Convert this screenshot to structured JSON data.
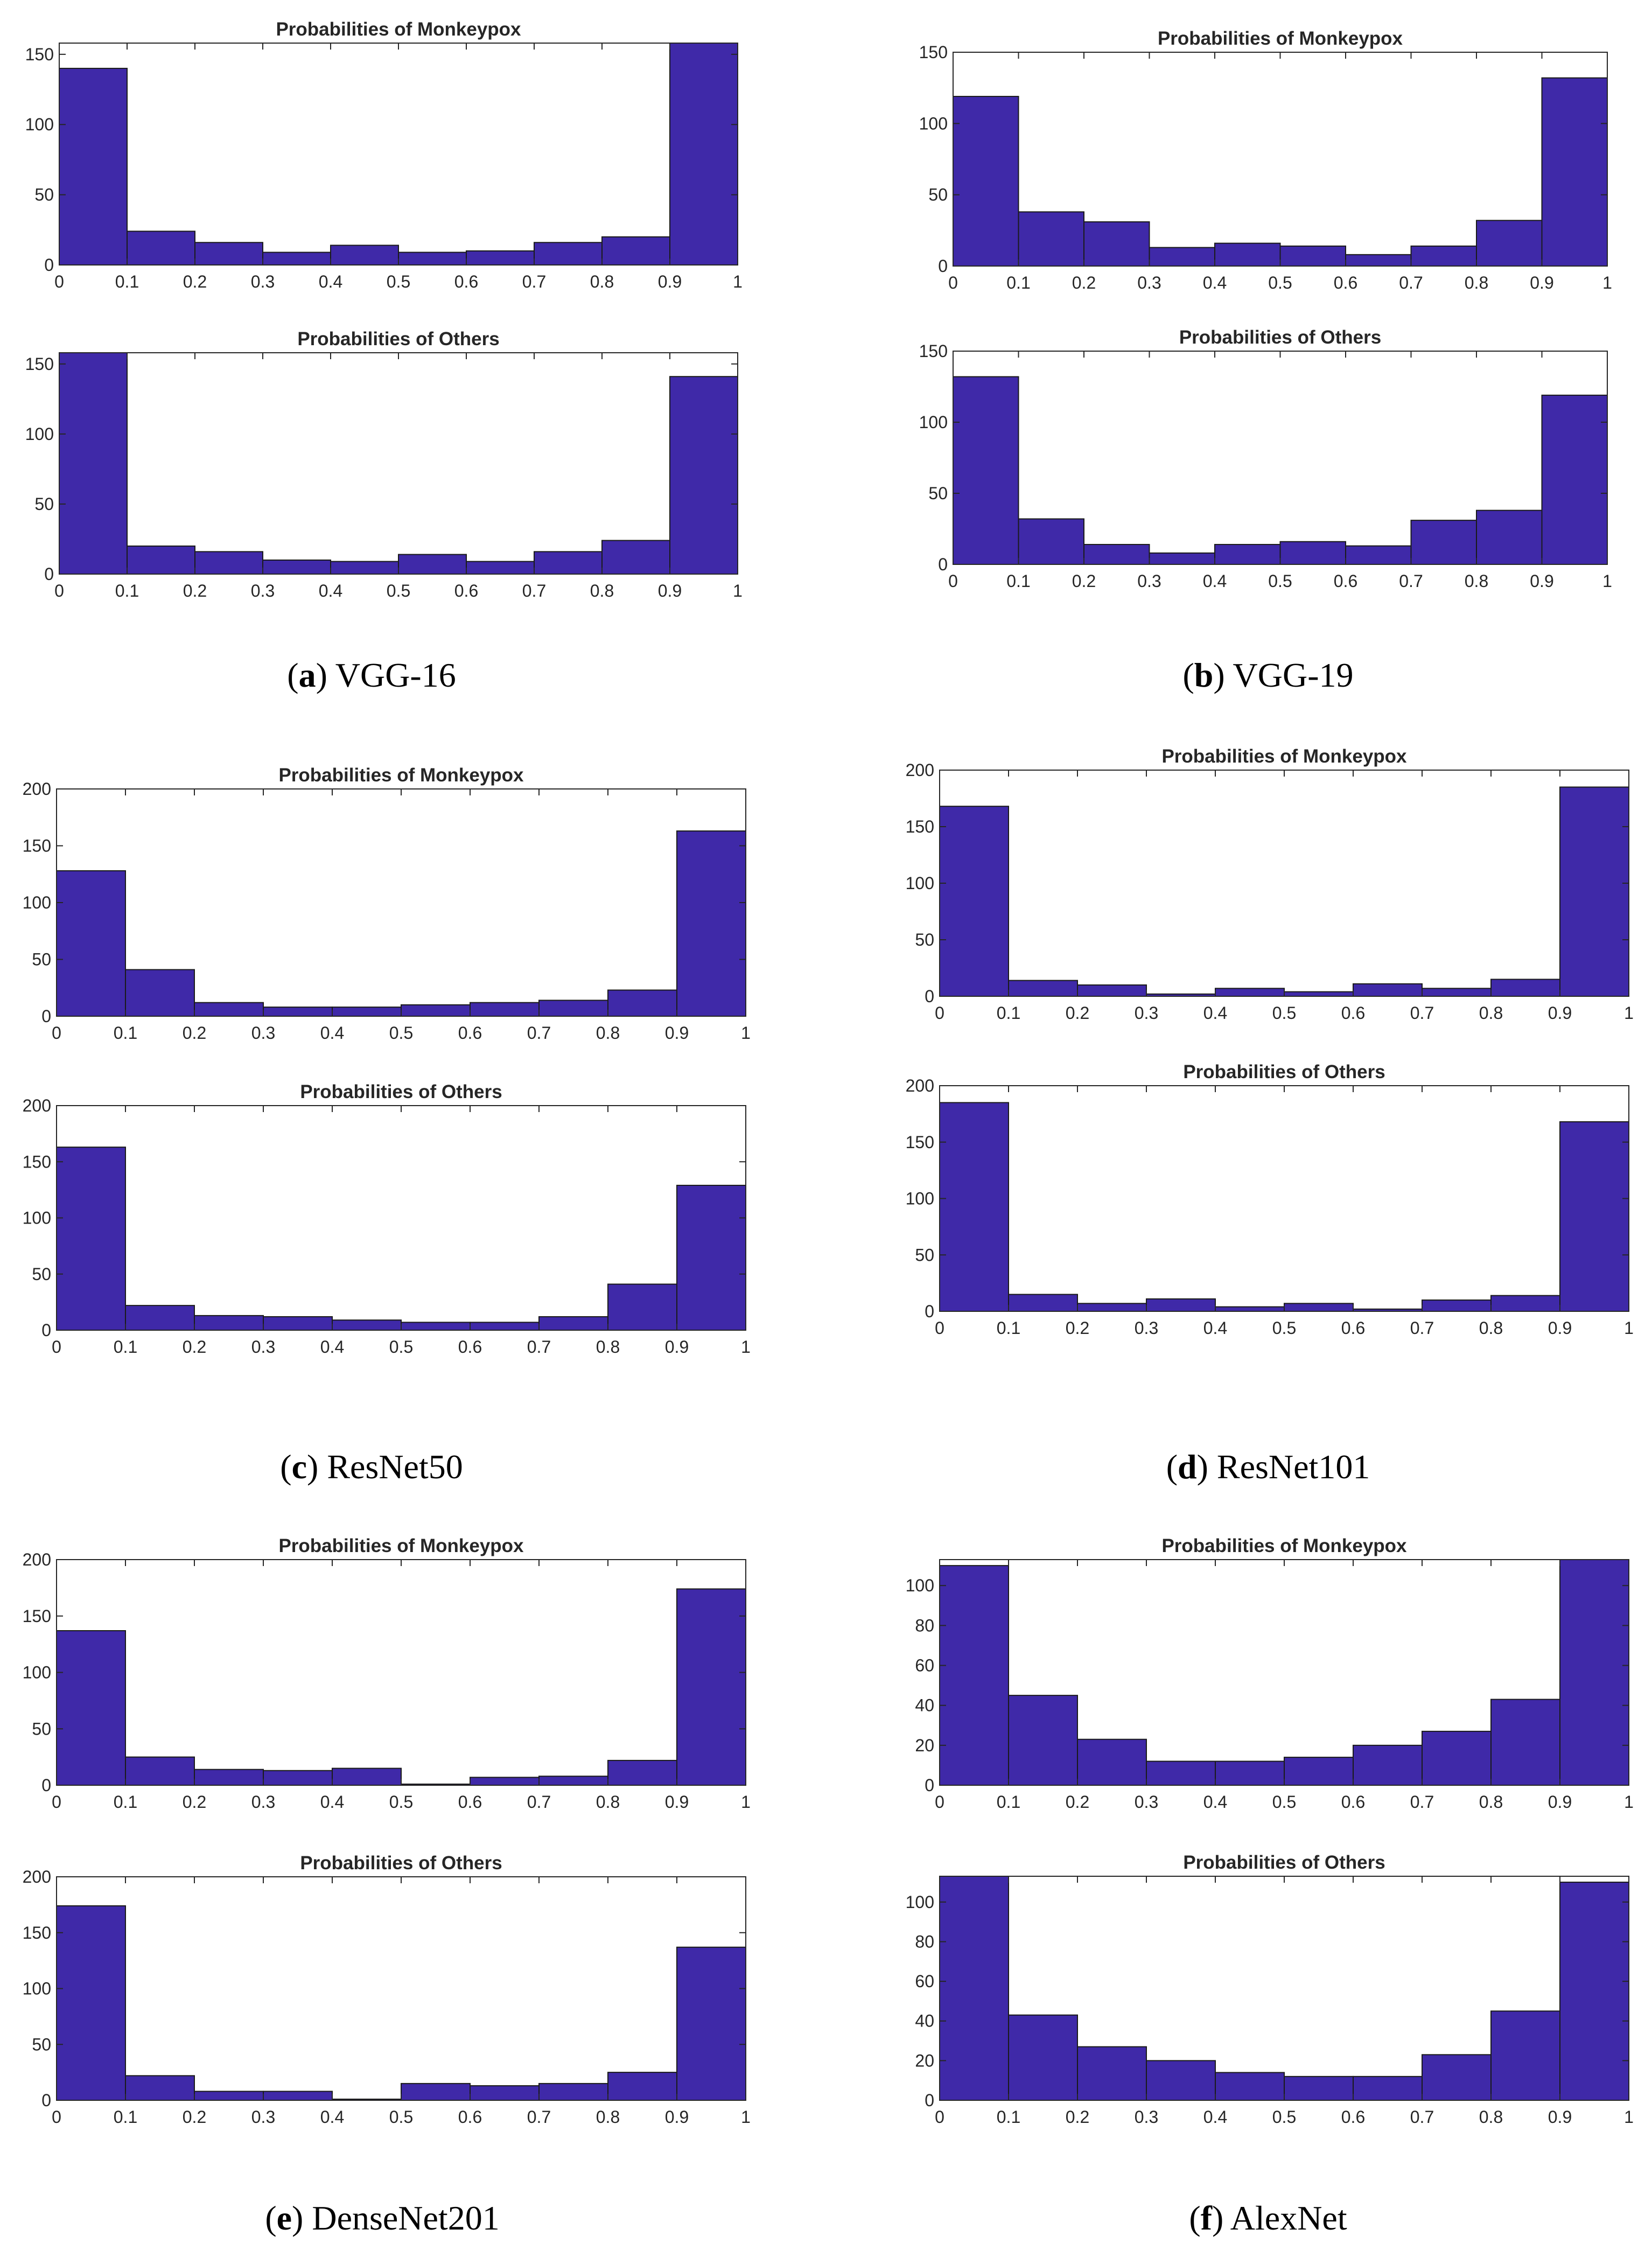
{
  "figure": {
    "captions": [
      {
        "letter": "a",
        "name": "VGG-16"
      },
      {
        "letter": "b",
        "name": "VGG-19"
      },
      {
        "letter": "c",
        "name": "ResNet50"
      },
      {
        "letter": "d",
        "name": "ResNet101"
      },
      {
        "letter": "e",
        "name": "DenseNet201"
      },
      {
        "letter": "f",
        "name": "AlexNet"
      }
    ]
  },
  "chart_data": [
    {
      "type": "bar",
      "panel": "a",
      "title": "Probabilities of Monkeypox",
      "bin_edges": [
        "0",
        "0.1",
        "0.2",
        "0.3",
        "0.4",
        "0.5",
        "0.6",
        "0.7",
        "0.8",
        "0.9",
        "1"
      ],
      "values": [
        140,
        24,
        16,
        9,
        14,
        9,
        10,
        16,
        20,
        158
      ],
      "ylim": [
        0,
        158
      ],
      "yticks": [
        0,
        50,
        100,
        150
      ]
    },
    {
      "type": "bar",
      "panel": "a",
      "title": "Probabilities of Others",
      "bin_edges": [
        "0",
        "0.1",
        "0.2",
        "0.3",
        "0.4",
        "0.5",
        "0.6",
        "0.7",
        "0.8",
        "0.9",
        "1"
      ],
      "values": [
        158,
        20,
        16,
        10,
        9,
        14,
        9,
        16,
        24,
        141
      ],
      "ylim": [
        0,
        158
      ],
      "yticks": [
        0,
        50,
        100,
        150
      ]
    },
    {
      "type": "bar",
      "panel": "b",
      "title": "Probabilities of Monkeypox",
      "bin_edges": [
        "0",
        "0.1",
        "0.2",
        "0.3",
        "0.4",
        "0.5",
        "0.6",
        "0.7",
        "0.8",
        "0.9",
        "1"
      ],
      "values": [
        119,
        38,
        31,
        13,
        16,
        14,
        8,
        14,
        32,
        132
      ],
      "ylim": [
        0,
        150
      ],
      "yticks": [
        0,
        50,
        100,
        150
      ]
    },
    {
      "type": "bar",
      "panel": "b",
      "title": "Probabilities of Others",
      "bin_edges": [
        "0",
        "0.1",
        "0.2",
        "0.3",
        "0.4",
        "0.5",
        "0.6",
        "0.7",
        "0.8",
        "0.9",
        "1"
      ],
      "values": [
        132,
        32,
        14,
        8,
        14,
        16,
        13,
        31,
        38,
        119
      ],
      "ylim": [
        0,
        150
      ],
      "yticks": [
        0,
        50,
        100,
        150
      ]
    },
    {
      "type": "bar",
      "panel": "c",
      "title": "Probabilities of Monkeypox",
      "bin_edges": [
        "0",
        "0.1",
        "0.2",
        "0.3",
        "0.4",
        "0.5",
        "0.6",
        "0.7",
        "0.8",
        "0.9",
        "1"
      ],
      "values": [
        128,
        41,
        12,
        8,
        8,
        10,
        12,
        14,
        23,
        163
      ],
      "ylim": [
        0,
        200
      ],
      "yticks": [
        0,
        50,
        100,
        150,
        200
      ]
    },
    {
      "type": "bar",
      "panel": "c",
      "title": "Probabilities of Others",
      "bin_edges": [
        "0",
        "0.1",
        "0.2",
        "0.3",
        "0.4",
        "0.5",
        "0.6",
        "0.7",
        "0.8",
        "0.9",
        "1"
      ],
      "values": [
        163,
        22,
        13,
        12,
        9,
        7,
        7,
        12,
        41,
        129
      ],
      "ylim": [
        0,
        200
      ],
      "yticks": [
        0,
        50,
        100,
        150,
        200
      ]
    },
    {
      "type": "bar",
      "panel": "d",
      "title": "Probabilities of Monkeypox",
      "bin_edges": [
        "0",
        "0.1",
        "0.2",
        "0.3",
        "0.4",
        "0.5",
        "0.6",
        "0.7",
        "0.8",
        "0.9",
        "1"
      ],
      "values": [
        168,
        14,
        10,
        2,
        7,
        4,
        11,
        7,
        15,
        185
      ],
      "ylim": [
        0,
        200
      ],
      "yticks": [
        0,
        50,
        100,
        150,
        200
      ]
    },
    {
      "type": "bar",
      "panel": "d",
      "title": "Probabilities of Others",
      "bin_edges": [
        "0",
        "0.1",
        "0.2",
        "0.3",
        "0.4",
        "0.5",
        "0.6",
        "0.7",
        "0.8",
        "0.9",
        "1"
      ],
      "values": [
        185,
        15,
        7,
        11,
        4,
        7,
        2,
        10,
        14,
        168
      ],
      "ylim": [
        0,
        200
      ],
      "yticks": [
        0,
        50,
        100,
        150,
        200
      ]
    },
    {
      "type": "bar",
      "panel": "e",
      "title": "Probabilities of Monkeypox",
      "bin_edges": [
        "0",
        "0.1",
        "0.2",
        "0.3",
        "0.4",
        "0.5",
        "0.6",
        "0.7",
        "0.8",
        "0.9",
        "1"
      ],
      "values": [
        137,
        25,
        14,
        13,
        15,
        1,
        7,
        8,
        22,
        174
      ],
      "ylim": [
        0,
        200
      ],
      "yticks": [
        0,
        50,
        100,
        150,
        200
      ]
    },
    {
      "type": "bar",
      "panel": "e",
      "title": "Probabilities of Others",
      "bin_edges": [
        "0",
        "0.1",
        "0.2",
        "0.3",
        "0.4",
        "0.5",
        "0.6",
        "0.7",
        "0.8",
        "0.9",
        "1"
      ],
      "values": [
        174,
        22,
        8,
        8,
        1,
        15,
        13,
        15,
        25,
        137
      ],
      "ylim": [
        0,
        200
      ],
      "yticks": [
        0,
        50,
        100,
        150,
        200
      ]
    },
    {
      "type": "bar",
      "panel": "f",
      "title": "Probabilities of Monkeypox",
      "bin_edges": [
        "0",
        "0.1",
        "0.2",
        "0.3",
        "0.4",
        "0.5",
        "0.6",
        "0.7",
        "0.8",
        "0.9",
        "1"
      ],
      "values": [
        110,
        45,
        23,
        12,
        12,
        14,
        20,
        27,
        43,
        113
      ],
      "ylim": [
        0,
        113
      ],
      "yticks": [
        0,
        20,
        40,
        60,
        80,
        100
      ]
    },
    {
      "type": "bar",
      "panel": "f",
      "title": "Probabilities of Others",
      "bin_edges": [
        "0",
        "0.1",
        "0.2",
        "0.3",
        "0.4",
        "0.5",
        "0.6",
        "0.7",
        "0.8",
        "0.9",
        "1"
      ],
      "values": [
        113,
        43,
        27,
        20,
        14,
        12,
        12,
        23,
        45,
        110
      ],
      "ylim": [
        0,
        113
      ],
      "yticks": [
        0,
        20,
        40,
        60,
        80,
        100
      ]
    }
  ],
  "style": {
    "bar_color": "#3f29a8",
    "axis_color": "#262626"
  }
}
